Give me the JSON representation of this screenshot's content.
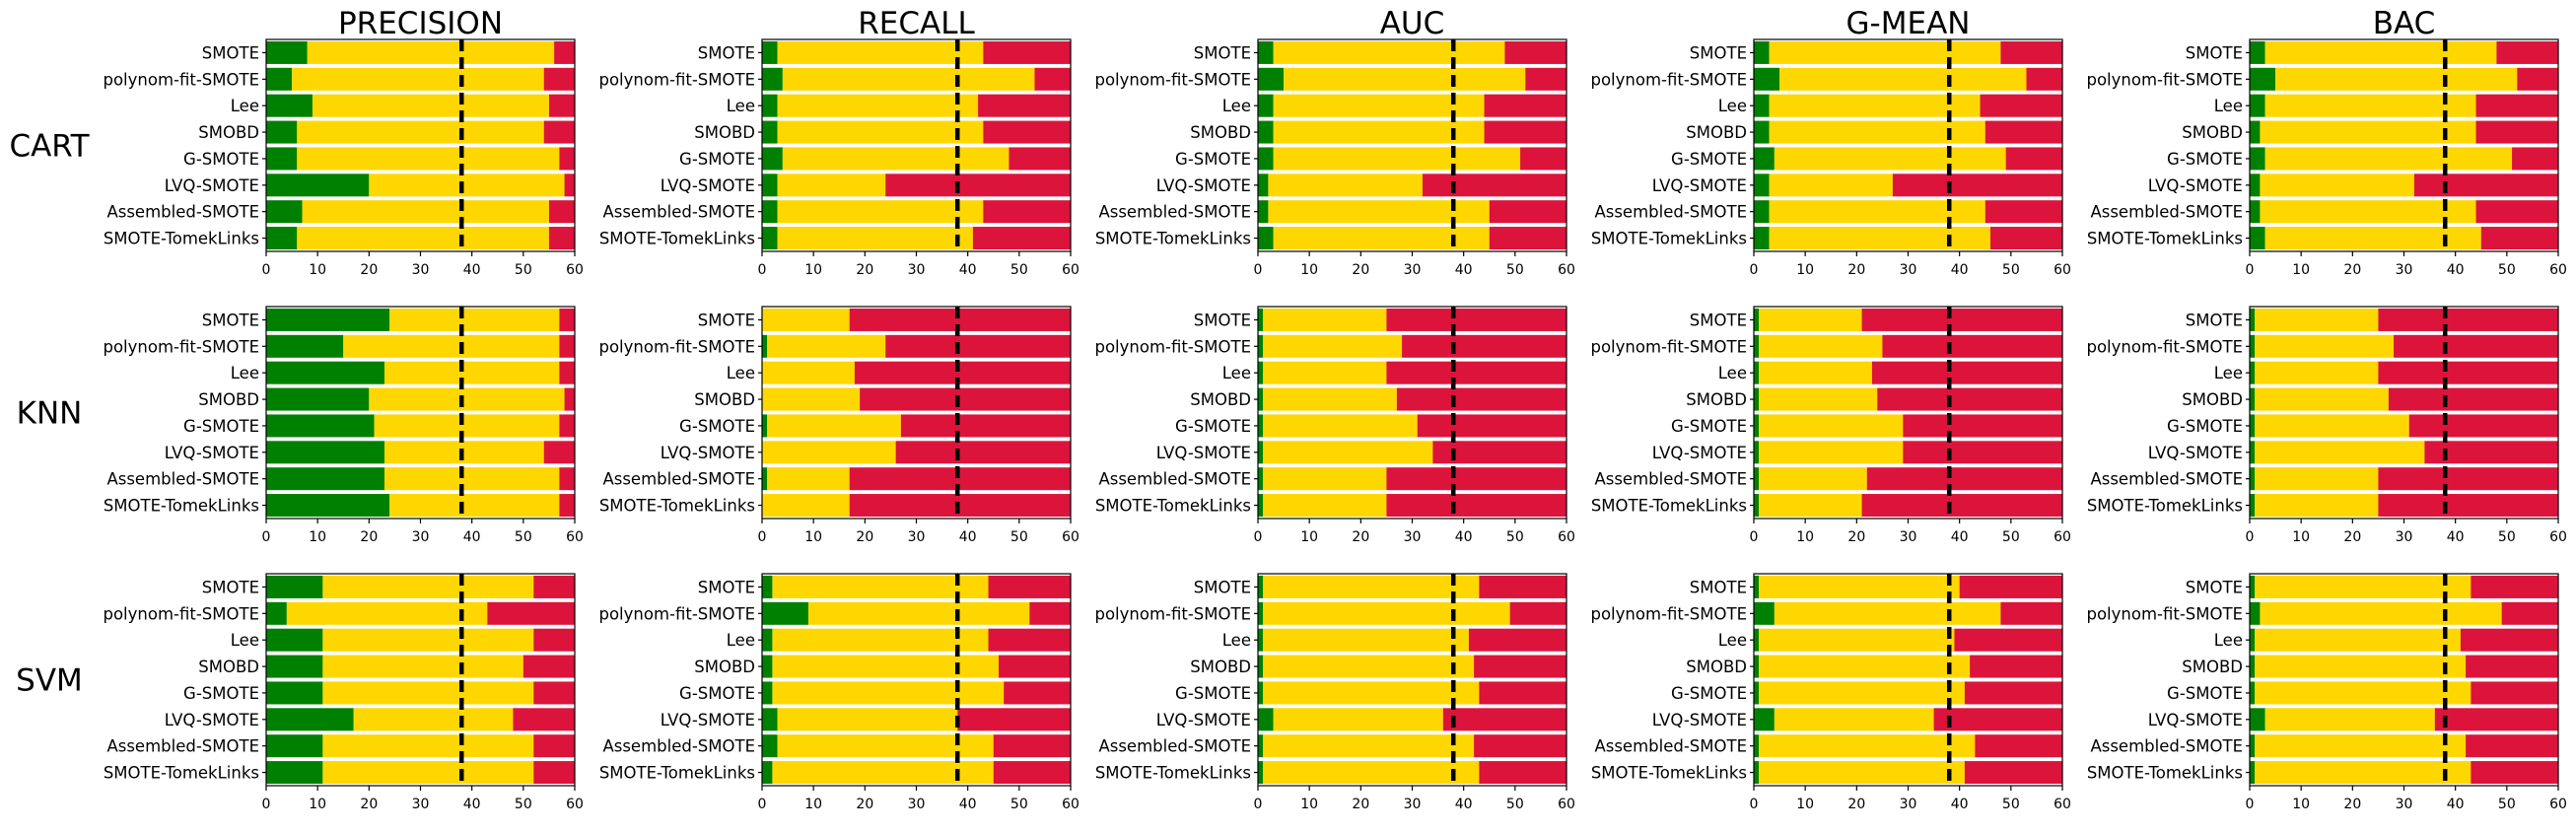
{
  "figure": {
    "colors": {
      "win": "#008000",
      "tie": "#FFD700",
      "loss": "#DC143C",
      "reference_line": "#000000"
    },
    "columns": [
      "PRECISION",
      "RECALL",
      "AUC",
      "G-MEAN",
      "BAC"
    ],
    "rows": [
      "CART",
      "KNN",
      "SVM"
    ],
    "methods": [
      "SMOTE",
      "polynom-fit-SMOTE",
      "Lee",
      "SMOBD",
      "G-SMOTE",
      "LVQ-SMOTE",
      "Assembled-SMOTE",
      "SMOTE-TomekLinks"
    ]
  },
  "chart_data": {
    "type": "bar",
    "orientation": "horizontal",
    "stacked": true,
    "stack_order": [
      "win",
      "tie",
      "loss"
    ],
    "xlim": [
      0,
      60
    ],
    "xticks": [
      0,
      10,
      20,
      30,
      40,
      50,
      60
    ],
    "reference_x": 38,
    "grid": false,
    "panels": [
      {
        "row": "CART",
        "title": "PRECISION",
        "win": [
          8,
          5,
          9,
          6,
          6,
          20,
          7,
          6
        ],
        "tie_end": [
          56,
          54,
          55,
          54,
          57,
          58,
          55,
          55
        ]
      },
      {
        "row": "CART",
        "title": "RECALL",
        "win": [
          3,
          4,
          3,
          3,
          4,
          3,
          3,
          3
        ],
        "tie_end": [
          43,
          53,
          42,
          43,
          48,
          24,
          43,
          41
        ]
      },
      {
        "row": "CART",
        "title": "AUC",
        "win": [
          3,
          5,
          3,
          3,
          3,
          2,
          2,
          3
        ],
        "tie_end": [
          48,
          52,
          44,
          44,
          51,
          32,
          45,
          45
        ]
      },
      {
        "row": "CART",
        "title": "G-MEAN",
        "win": [
          3,
          5,
          3,
          3,
          4,
          3,
          3,
          3
        ],
        "tie_end": [
          48,
          53,
          44,
          45,
          49,
          27,
          45,
          46
        ]
      },
      {
        "row": "CART",
        "title": "BAC",
        "win": [
          3,
          5,
          3,
          2,
          3,
          2,
          2,
          3
        ],
        "tie_end": [
          48,
          52,
          44,
          44,
          51,
          32,
          44,
          45
        ]
      },
      {
        "row": "KNN",
        "title": "PRECISION",
        "win": [
          24,
          15,
          23,
          20,
          21,
          23,
          23,
          24
        ],
        "tie_end": [
          57,
          57,
          57,
          58,
          57,
          54,
          57,
          57
        ]
      },
      {
        "row": "KNN",
        "title": "RECALL",
        "win": [
          0,
          1,
          0,
          0,
          1,
          0,
          1,
          0
        ],
        "tie_end": [
          17,
          24,
          18,
          19,
          27,
          26,
          17,
          17
        ]
      },
      {
        "row": "KNN",
        "title": "AUC",
        "win": [
          1,
          1,
          1,
          1,
          1,
          1,
          1,
          1
        ],
        "tie_end": [
          25,
          28,
          25,
          27,
          31,
          34,
          25,
          25
        ]
      },
      {
        "row": "KNN",
        "title": "G-MEAN",
        "win": [
          1,
          1,
          1,
          1,
          1,
          1,
          1,
          1
        ],
        "tie_end": [
          21,
          25,
          23,
          24,
          29,
          29,
          22,
          21
        ]
      },
      {
        "row": "KNN",
        "title": "BAC",
        "win": [
          1,
          1,
          1,
          1,
          1,
          1,
          1,
          1
        ],
        "tie_end": [
          25,
          28,
          25,
          27,
          31,
          34,
          25,
          25
        ]
      },
      {
        "row": "SVM",
        "title": "PRECISION",
        "win": [
          11,
          4,
          11,
          11,
          11,
          17,
          11,
          11
        ],
        "tie_end": [
          52,
          43,
          52,
          50,
          52,
          48,
          52,
          52
        ]
      },
      {
        "row": "SVM",
        "title": "RECALL",
        "win": [
          2,
          9,
          2,
          2,
          2,
          3,
          3,
          2
        ],
        "tie_end": [
          44,
          52,
          44,
          46,
          47,
          38,
          45,
          45
        ]
      },
      {
        "row": "SVM",
        "title": "AUC",
        "win": [
          1,
          1,
          1,
          1,
          1,
          3,
          1,
          1
        ],
        "tie_end": [
          43,
          49,
          41,
          42,
          43,
          36,
          42,
          43
        ]
      },
      {
        "row": "SVM",
        "title": "G-MEAN",
        "win": [
          1,
          4,
          1,
          1,
          1,
          4,
          1,
          1
        ],
        "tie_end": [
          40,
          48,
          39,
          42,
          41,
          35,
          43,
          41
        ]
      },
      {
        "row": "SVM",
        "title": "BAC",
        "win": [
          1,
          2,
          1,
          1,
          1,
          3,
          1,
          1
        ],
        "tie_end": [
          43,
          49,
          41,
          42,
          43,
          36,
          42,
          43
        ]
      }
    ]
  }
}
